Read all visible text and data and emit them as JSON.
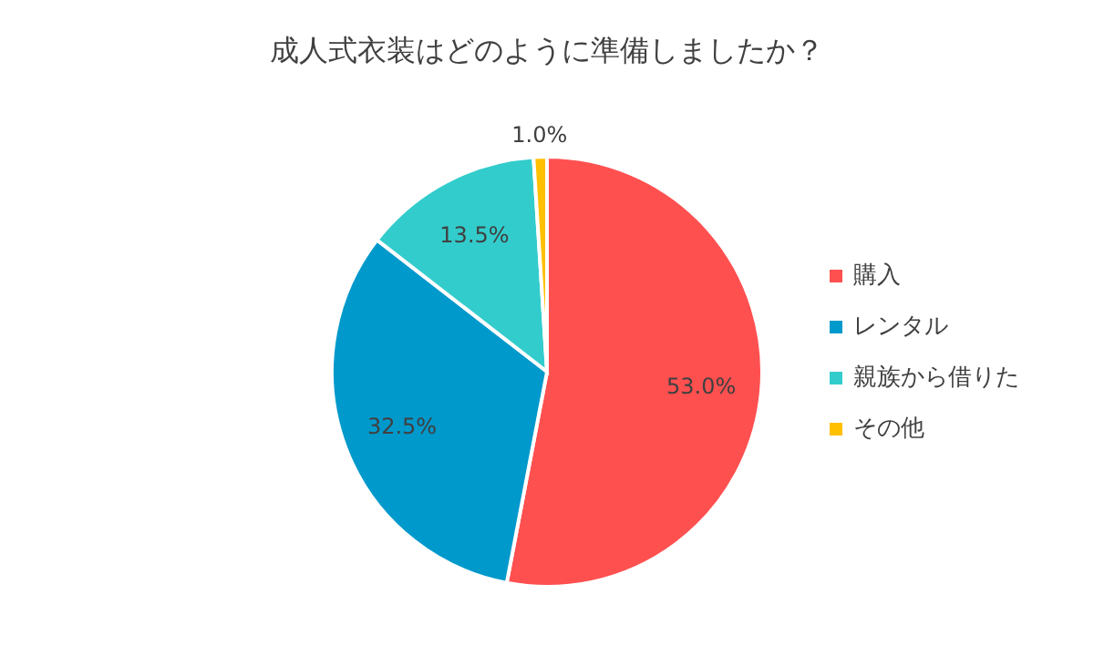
{
  "chart_data": {
    "type": "pie",
    "title": "成人式衣装はどのように準備しましたか？",
    "categories": [
      "購入",
      "レンタル",
      "親族から借りた",
      "その他"
    ],
    "values": [
      53.0,
      32.5,
      13.5,
      1.0
    ],
    "value_labels": [
      "53.0%",
      "32.5%",
      "13.5%",
      "1.0%"
    ],
    "colors": [
      "#ff5050",
      "#0099cc",
      "#33cccc",
      "#ffc000"
    ],
    "legend": "right"
  }
}
